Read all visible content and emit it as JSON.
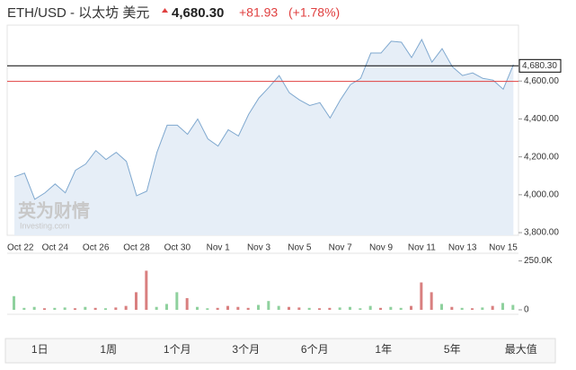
{
  "header": {
    "title": "ETH/USD - 以太坊 美元",
    "price": "4,680.30",
    "change": "+81.93",
    "change_pct": "(+1.78%)"
  },
  "watermark": {
    "brand": "英为财情",
    "site": "Investing.com"
  },
  "chart_data": [
    {
      "type": "line",
      "color": "#7fa8cf",
      "fill": "#e6eef7",
      "categories": [
        "Oct 22",
        null,
        null,
        null,
        "Oct 24",
        null,
        null,
        null,
        "Oct 26",
        null,
        null,
        null,
        "Oct 28",
        null,
        null,
        null,
        "Oct 30",
        null,
        null,
        null,
        "Nov 1",
        null,
        null,
        null,
        "Nov 3",
        null,
        null,
        null,
        "Nov 5",
        null,
        null,
        null,
        "Nov 7",
        null,
        null,
        null,
        "Nov 9",
        null,
        null,
        null,
        "Nov 11",
        null,
        null,
        null,
        "Nov 13",
        null,
        null,
        null,
        "Nov 15",
        null
      ],
      "values": [
        4095,
        4114,
        3976,
        4010,
        4057,
        4010,
        4129,
        4162,
        4233,
        4186,
        4224,
        4176,
        3995,
        4019,
        4224,
        4367,
        4367,
        4319,
        4400,
        4295,
        4257,
        4343,
        4310,
        4424,
        4510,
        4567,
        4629,
        4538,
        4500,
        4471,
        4486,
        4405,
        4500,
        4581,
        4614,
        4748,
        4748,
        4810,
        4805,
        4724,
        4819,
        4700,
        4771,
        4676,
        4629,
        4643,
        4614,
        4605,
        4557,
        4686
      ],
      "ylim": [
        3786,
        4895
      ],
      "yticks": [
        {
          "value": 3800,
          "label": "3,800.00"
        },
        {
          "value": 4000,
          "label": "4,000.00"
        },
        {
          "value": 4200,
          "label": "4,200.00"
        },
        {
          "value": 4400,
          "label": "4,400.00"
        },
        {
          "value": 4600,
          "label": "4,600.00"
        }
      ],
      "last_price": {
        "value": 4680.3,
        "label": "4,680.30",
        "color": "#000000"
      },
      "prev_close": {
        "value": 4598.37,
        "color": "#e04040"
      }
    },
    {
      "type": "bar",
      "values": [
        70000,
        10000,
        15000,
        8000,
        10000,
        12000,
        8000,
        15000,
        10000,
        8000,
        12000,
        20000,
        90000,
        200000,
        15000,
        30000,
        90000,
        60000,
        15000,
        8000,
        10000,
        20000,
        15000,
        10000,
        25000,
        45000,
        20000,
        15000,
        12000,
        10000,
        8000,
        10000,
        12000,
        15000,
        8000,
        20000,
        10000,
        15000,
        10000,
        20000,
        140000,
        90000,
        30000,
        15000,
        10000,
        8000,
        12000,
        20000,
        35000,
        25000
      ],
      "colors": [
        "#8fd19e",
        "#8fd19e",
        "#8fd19e",
        "#d98080",
        "#8fd19e",
        "#8fd19e",
        "#d98080",
        "#8fd19e",
        "#d98080",
        "#8fd19e",
        "#d98080",
        "#d98080",
        "#d98080",
        "#d98080",
        "#8fd19e",
        "#8fd19e",
        "#8fd19e",
        "#d98080",
        "#8fd19e",
        "#8fd19e",
        "#d98080",
        "#d98080",
        "#d98080",
        "#d98080",
        "#8fd19e",
        "#8fd19e",
        "#8fd19e",
        "#d98080",
        "#d98080",
        "#8fd19e",
        "#d98080",
        "#d98080",
        "#8fd19e",
        "#8fd19e",
        "#8fd19e",
        "#8fd19e",
        "#d98080",
        "#8fd19e",
        "#8fd19e",
        "#d98080",
        "#d98080",
        "#d98080",
        "#8fd19e",
        "#d98080",
        "#8fd19e",
        "#d98080",
        "#8fd19e",
        "#d98080",
        "#8fd19e",
        "#8fd19e"
      ],
      "ylim": [
        0,
        280000
      ],
      "yticks": [
        0,
        {
          "value": 250000,
          "label": "250.0K"
        }
      ]
    }
  ],
  "range_buttons": [
    "1日",
    "1周",
    "1个月",
    "3个月",
    "6个月",
    "1年",
    "5年",
    "最大值"
  ]
}
